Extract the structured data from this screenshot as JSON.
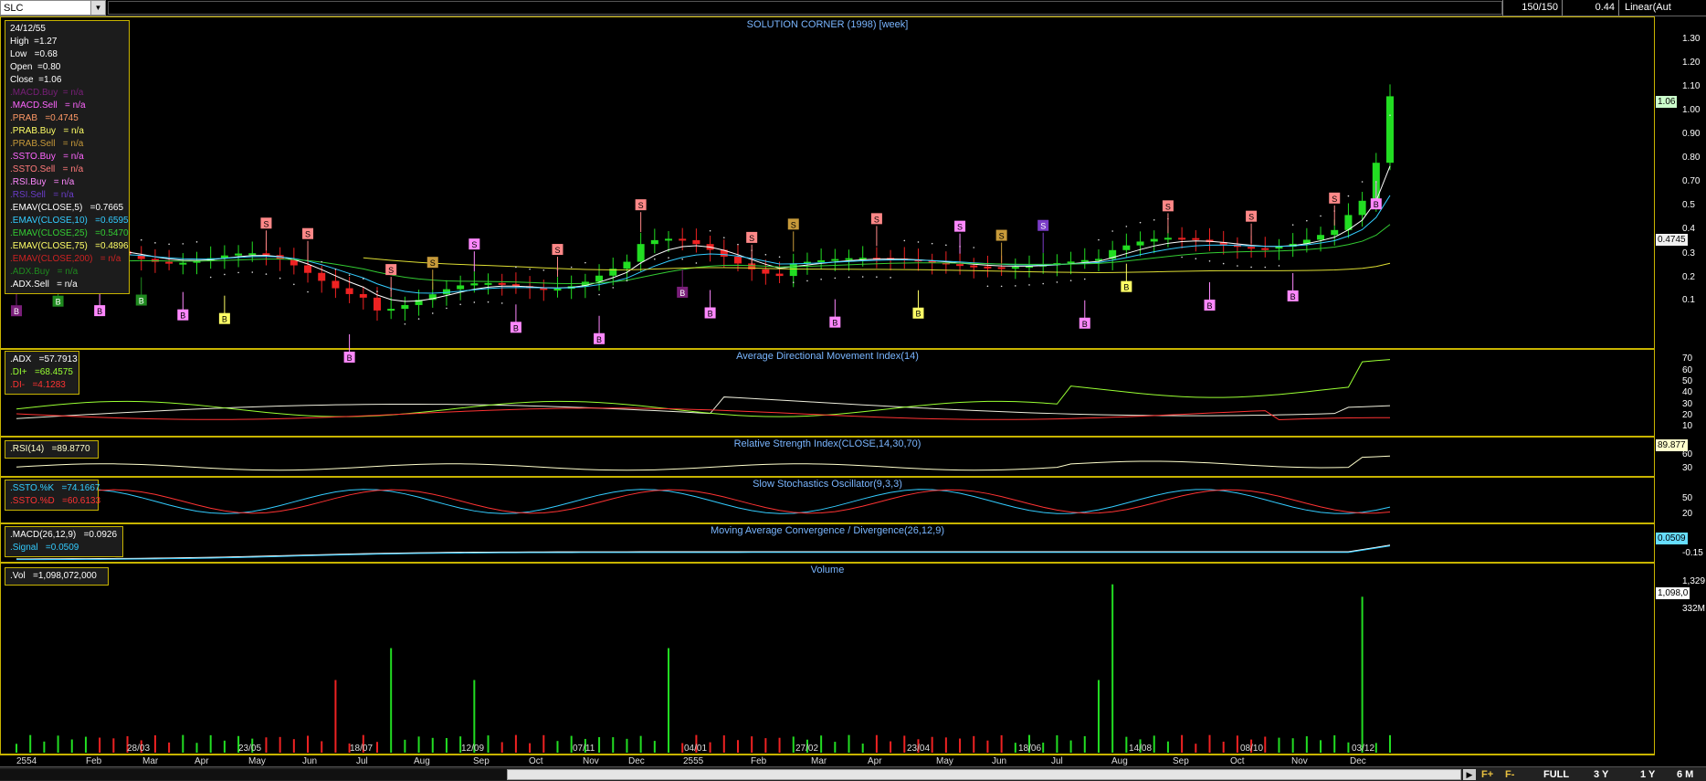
{
  "toolbar": {
    "symbol": "SLC",
    "bars": "150/150",
    "value": "0.44",
    "scale_mode": "Linear(Aut"
  },
  "main": {
    "title": "SOLUTION CORNER (1998) [week]",
    "legend": [
      {
        "text": "24/12/55",
        "color": "#ffffff"
      },
      {
        "text": "High  =1.27",
        "color": "#ffffff"
      },
      {
        "text": "Low   =0.68",
        "color": "#ffffff"
      },
      {
        "text": "Open  =0.80",
        "color": "#ffffff"
      },
      {
        "text": "Close  =1.06",
        "color": "#ffffff"
      },
      {
        "text": ".MACD.Buy  = n/a",
        "color": "#7a1f7a"
      },
      {
        "text": ".MACD.Sell   = n/a",
        "color": "#ff66ff"
      },
      {
        "text": ".PRAB   =0.4745",
        "color": "#ff9966"
      },
      {
        "text": ".PRAB.Buy   = n/a",
        "color": "#ffff66"
      },
      {
        "text": ".PRAB.Sell   = n/a",
        "color": "#c79a3a"
      },
      {
        "text": ".SSTO.Buy   = n/a",
        "color": "#ff66ff"
      },
      {
        "text": ".SSTO.Sell   = n/a",
        "color": "#ff7a7a"
      },
      {
        "text": ".RSI.Buy   = n/a",
        "color": "#ff88ff"
      },
      {
        "text": ".RSI.Sell   = n/a",
        "color": "#6a3cc8"
      },
      {
        "text": ".EMAV(CLOSE,5)   =0.7665",
        "color": "#ffffff"
      },
      {
        "text": ".EMAV(CLOSE,10)   =0.6595",
        "color": "#33ccff"
      },
      {
        "text": ".EMAV(CLOSE,25)   =0.5470",
        "color": "#33cc33"
      },
      {
        "text": ".EMAV(CLOSE,75)   =0.4896",
        "color": "#ffff66"
      },
      {
        "text": ".EMAV(CLOSE,200)   = n/a",
        "color": "#cc2222"
      },
      {
        "text": ".ADX.Buy   = n/a",
        "color": "#1f8a1f"
      },
      {
        "text": ".ADX.Sell   = n/a",
        "color": "#ffffff"
      }
    ],
    "scale": [
      "1.30",
      "1.20",
      "1.10",
      "1.00",
      "0.90",
      "0.80",
      "0.70",
      "0.5",
      "0.4",
      "0.3",
      "0.2",
      "0.1"
    ],
    "tags": [
      {
        "text": "1.06",
        "color": "#ccffcc"
      },
      {
        "text": "0.4745",
        "color": "#f0f0f0"
      }
    ],
    "signals": [
      {
        "t": "B",
        "kind": "macdbuy"
      },
      {
        "t": "B",
        "kind": "adxbuy"
      },
      {
        "t": "B",
        "kind": "ssto"
      },
      {
        "t": "B",
        "kind": "adxbuy"
      },
      {
        "t": "B",
        "kind": "ssto"
      },
      {
        "t": "B",
        "kind": "prabbuy"
      },
      {
        "t": "S",
        "kind": "sell"
      },
      {
        "t": "S",
        "kind": "sell"
      },
      {
        "t": "B",
        "kind": "ssto"
      },
      {
        "t": "S",
        "kind": "sell"
      },
      {
        "t": "S",
        "kind": "prabsell"
      },
      {
        "t": "S",
        "kind": "ssto"
      },
      {
        "t": "B",
        "kind": "ssto"
      },
      {
        "t": "S",
        "kind": "sell"
      },
      {
        "t": "B",
        "kind": "ssto"
      },
      {
        "t": "S",
        "kind": "sell"
      },
      {
        "t": "B",
        "kind": "macdbuy"
      },
      {
        "t": "B",
        "kind": "ssto"
      },
      {
        "t": "S",
        "kind": "sell"
      },
      {
        "t": "S",
        "kind": "prabsell"
      },
      {
        "t": "B",
        "kind": "ssto"
      },
      {
        "t": "S",
        "kind": "sell"
      },
      {
        "t": "B",
        "kind": "prabbuy"
      },
      {
        "t": "S",
        "kind": "ssto"
      },
      {
        "t": "S",
        "kind": "prabsell"
      },
      {
        "t": "S",
        "kind": "macdsell"
      },
      {
        "t": "B",
        "kind": "ssto"
      },
      {
        "t": "B",
        "kind": "prabbuy"
      },
      {
        "t": "S",
        "kind": "sell"
      },
      {
        "t": "B",
        "kind": "ssto"
      },
      {
        "t": "S",
        "kind": "sell"
      },
      {
        "t": "B",
        "kind": "ssto"
      },
      {
        "t": "S",
        "kind": "sell"
      },
      {
        "t": "B",
        "kind": "ssto"
      }
    ]
  },
  "adx": {
    "title": "Average Directional Movement Index(14)",
    "legend": [
      {
        "text": ".ADX   =57.7913",
        "color": "#ffffff"
      },
      {
        "text": ".DI+   =68.4575",
        "color": "#99ff33"
      },
      {
        "text": ".DI-   =4.1283",
        "color": "#ff3333"
      }
    ],
    "scale": [
      "70",
      "60",
      "50",
      "40",
      "30",
      "20",
      "10"
    ]
  },
  "rsi": {
    "title": "Relative Strength Index(CLOSE,14,30,70)",
    "legend": [
      {
        "text": ".RSI(14)   =89.8770",
        "color": "#ffffcc"
      }
    ],
    "scale": [
      "60",
      "30"
    ],
    "tag": "89.877"
  },
  "ssto": {
    "title": "Slow Stochastics Oscillator(9,3,3)",
    "legend": [
      {
        "text": ".SSTO.%K   =74.1667",
        "color": "#33ccff"
      },
      {
        "text": ".SSTO.%D   =60.6133",
        "color": "#ff3333"
      }
    ],
    "scale": [
      "50",
      "20"
    ]
  },
  "macd": {
    "title": "Moving Average Convergence / Divergence(26,12,9)",
    "legend": [
      {
        "text": ".MACD(26,12,9)   =0.0926",
        "color": "#ffffff"
      },
      {
        "text": ".Signal   =0.0509",
        "color": "#33ccff"
      }
    ],
    "scale": [
      "-0.15"
    ],
    "tag": "0.0509"
  },
  "vol": {
    "title": "Volume",
    "legend": [
      {
        "text": ".Vol   =1,098,072,000",
        "color": "#ffffff"
      }
    ],
    "scale": [
      "1,329",
      "332M"
    ],
    "tag": "1,098,0"
  },
  "xaxis": {
    "dates": [
      "28/03",
      "23/05",
      "18/07",
      "12/09",
      "07/11",
      "04/01",
      "27/02",
      "23/04",
      "18/06",
      "14/08",
      "08/10",
      "03/12"
    ],
    "months": [
      "2554",
      "Feb",
      "Mar",
      "Apr",
      "May",
      "Jun",
      "Jul",
      "Aug",
      "Sep",
      "Oct",
      "Nov",
      "Dec",
      "2555",
      "Feb",
      "Mar",
      "Apr",
      "May",
      "Jun",
      "Jul",
      "Aug",
      "Sep",
      "Oct",
      "Nov",
      "Dec"
    ]
  },
  "bottom": {
    "buttons": [
      "FULL",
      "3 Y",
      "1 Y",
      "6 M"
    ],
    "f_plus": "F+",
    "f_minus": "F-"
  }
}
